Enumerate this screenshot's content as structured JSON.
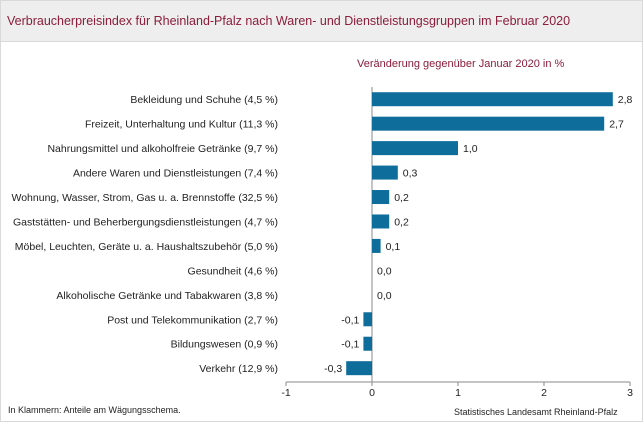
{
  "header": {
    "title": "Verbraucherpreisindex  für Rheinland-Pfalz  nach Waren- und Dienstleistungsgruppen  im Februar 2020"
  },
  "chart_data": {
    "type": "bar",
    "orientation": "horizontal",
    "subtitle": "Veränderung  gegenüber  Januar 2020  in %",
    "categories": [
      "Bekleidung und Schuhe (4,5 %)",
      "Freizeit, Unterhaltung und Kultur (11,3 %)",
      "Nahrungsmittel und alkoholfreie Getränke (9,7 %)",
      "Andere Waren und Dienstleistungen (7,4 %)",
      "Wohnung, Wasser, Strom, Gas u. a. Brennstoffe (32,5 %)",
      "Gaststätten- und Beherbergungsdienstleistungen (4,7 %)",
      "Möbel, Leuchten, Geräte u. a. Haushaltszubehör (5,0 %)",
      "Gesundheit (4,6 %)",
      "Alkoholische Getränke und Tabakwaren (3,8 %)",
      "Post und Telekommunikation (2,7 %)",
      "Bildungswesen (0,9 %)",
      "Verkehr (12,9 %)"
    ],
    "values": [
      2.8,
      2.7,
      1.0,
      0.3,
      0.2,
      0.2,
      0.1,
      0.0,
      0.0,
      -0.1,
      -0.1,
      -0.3
    ],
    "value_labels": [
      "2,8",
      "2,7",
      "1,0",
      "0,3",
      "0,2",
      "0,2",
      "0,1",
      "0,0",
      "0,0",
      "-0,1",
      "-0,1",
      "-0,3"
    ],
    "xlim": [
      -1,
      3
    ],
    "x_ticks": [
      -1,
      0,
      1,
      2,
      3
    ],
    "x_tick_labels": [
      "-1",
      "0",
      "1",
      "2",
      "3"
    ],
    "bar_color": "#0f6d9b",
    "axis_color": "#8a8a8a",
    "title_color": "#8c1d3a",
    "grid": false,
    "legend": "none"
  },
  "footer": {
    "note": "In Klammern:  Anteile am Wägungsschema.",
    "source": "Statistisches  Landesamt Rheinland-Pfalz"
  }
}
